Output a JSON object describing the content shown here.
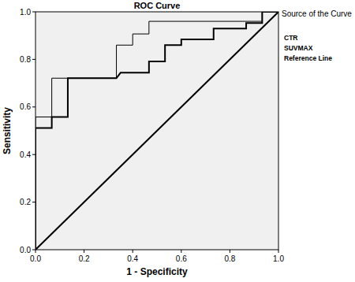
{
  "chart_data": {
    "type": "line",
    "title": "ROC Curve",
    "x_label": "1 - Specificity",
    "y_label": "Sensitivity",
    "legend_title": "Source of the Curve",
    "legend": "right",
    "grid": false,
    "marker": "none",
    "xlim": [
      0,
      1
    ],
    "ylim": [
      0,
      1
    ],
    "xticks": [
      {
        "value": 0,
        "label": "0.0"
      },
      {
        "value": 0.2,
        "label": "0.2"
      },
      {
        "value": 0.4,
        "label": "0.4"
      },
      {
        "value": 0.6,
        "label": "0.6"
      },
      {
        "value": 0.8,
        "label": "0.8"
      },
      {
        "value": 1,
        "label": "1.0"
      }
    ],
    "yticks": [
      {
        "value": 0,
        "label": "0.0"
      },
      {
        "value": 0.2,
        "label": "0.2"
      },
      {
        "value": 0.4,
        "label": "0.4"
      },
      {
        "value": 0.6,
        "label": "0.6"
      },
      {
        "value": 0.8,
        "label": "0.8"
      },
      {
        "value": 1,
        "label": "1.0"
      }
    ],
    "series": [
      {
        "name": "CTR",
        "color": "#000000",
        "line_style": "solid",
        "x": [
          0,
          0,
          0.067,
          0.067,
          0.333,
          0.333,
          0.4,
          0.4,
          0.467,
          0.467,
          0.933,
          0.933,
          1
        ],
        "values": [
          0,
          0.558,
          0.558,
          0.721,
          0.721,
          0.86,
          0.86,
          0.907,
          0.907,
          0.96,
          0.96,
          1,
          1
        ]
      },
      {
        "name": "SUVMAX",
        "color": "#000000",
        "line_style": "solid",
        "x": [
          0,
          0,
          0.067,
          0.067,
          0.133,
          0.133,
          0.333,
          0.35,
          0.467,
          0.467,
          0.533,
          0.533,
          0.6,
          0.6,
          0.733,
          0.733,
          0.867,
          0.867,
          0.933,
          0.933,
          1
        ],
        "values": [
          0,
          0.512,
          0.512,
          0.558,
          0.558,
          0.721,
          0.721,
          0.744,
          0.744,
          0.791,
          0.791,
          0.86,
          0.86,
          0.884,
          0.884,
          0.93,
          0.93,
          0.953,
          0.953,
          1,
          1
        ]
      },
      {
        "name": "Reference Line",
        "color": "#000000",
        "line_style": "solid",
        "x": [
          0,
          1
        ],
        "values": [
          0,
          1
        ]
      }
    ]
  }
}
